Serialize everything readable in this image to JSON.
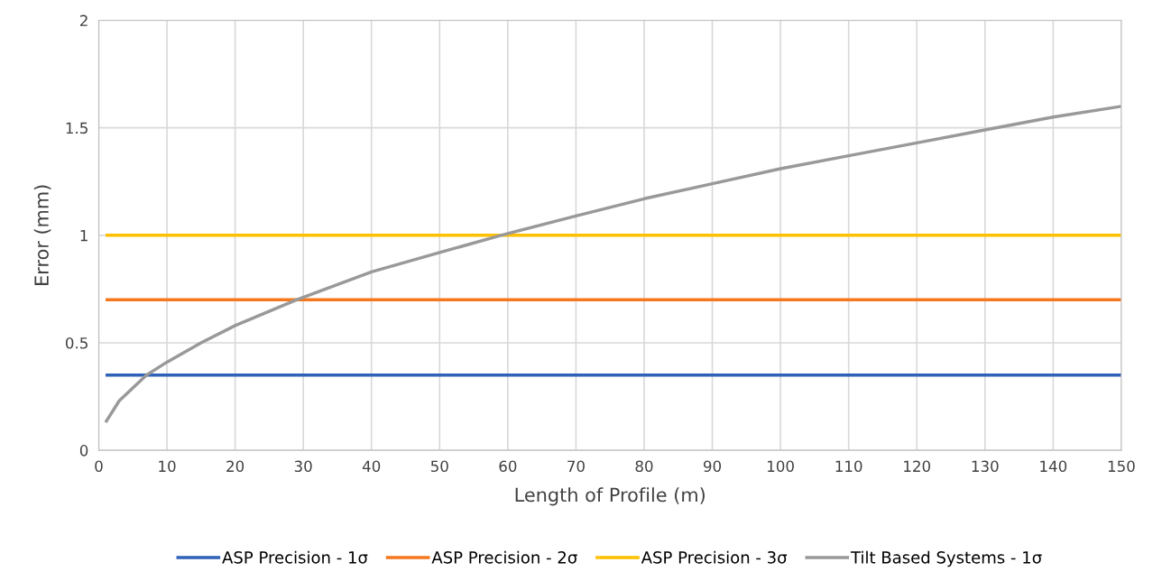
{
  "chart_data": {
    "type": "line",
    "xlabel": "Length of Profile (m)",
    "ylabel": "Error (mm)",
    "xlim": [
      0,
      150
    ],
    "xticks": [
      0,
      10,
      20,
      30,
      40,
      50,
      60,
      70,
      80,
      90,
      100,
      110,
      120,
      130,
      140,
      150
    ],
    "ylim": [
      0,
      2
    ],
    "yticks": [
      0,
      0.5,
      1,
      1.5,
      2
    ],
    "grid": true,
    "legend": "bottom",
    "marker": "none",
    "line_style": "solid",
    "series": [
      {
        "name": "ASP Precision - 1σ",
        "color": "#2f62b8",
        "x": [
          1,
          150
        ],
        "values": [
          0.35,
          0.35
        ]
      },
      {
        "name": "ASP Precision - 2σ",
        "color": "#f5781f",
        "x": [
          1,
          150
        ],
        "values": [
          0.7,
          0.7
        ]
      },
      {
        "name": "ASP Precision - 3σ",
        "color": "#ffc000",
        "x": [
          1,
          150
        ],
        "values": [
          1.0,
          1.0
        ]
      },
      {
        "name": "Tilt Based Systems - 1σ",
        "color": "#999999",
        "x": [
          1,
          2,
          3,
          5,
          7,
          10,
          15,
          20,
          29,
          40,
          50,
          59,
          70,
          80,
          90,
          100,
          110,
          120,
          130,
          140,
          150
        ],
        "values": [
          0.13,
          0.18,
          0.23,
          0.29,
          0.35,
          0.41,
          0.5,
          0.58,
          0.7,
          0.83,
          0.92,
          1.0,
          1.09,
          1.17,
          1.24,
          1.31,
          1.37,
          1.43,
          1.49,
          1.55,
          1.6
        ]
      }
    ]
  }
}
